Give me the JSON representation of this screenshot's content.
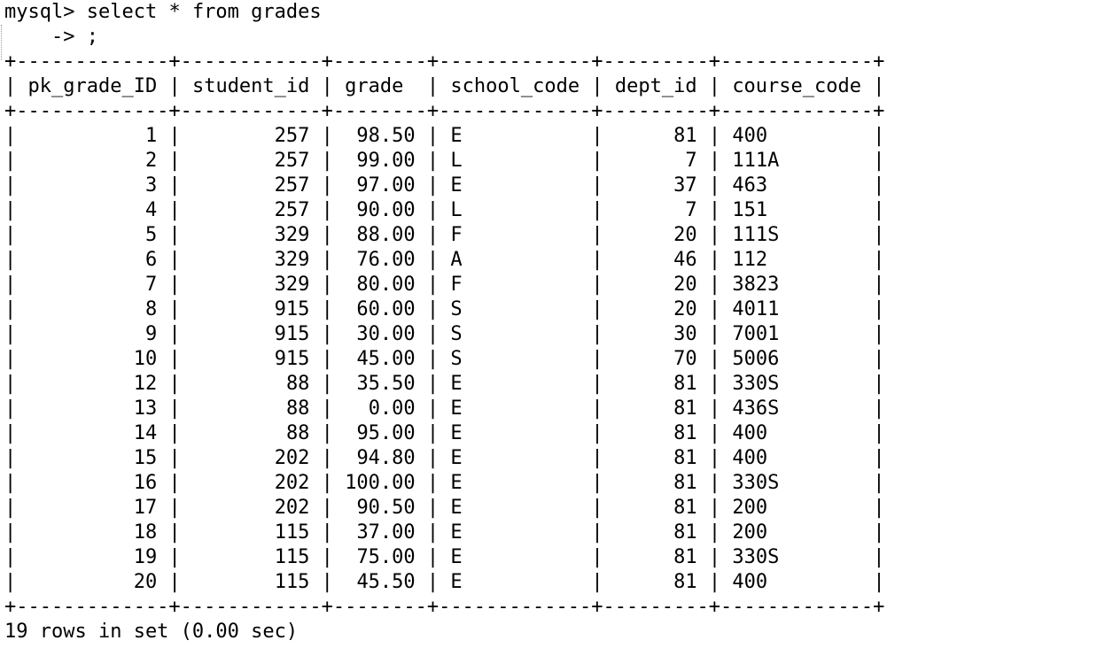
{
  "terminal": {
    "prompt": "mysql>",
    "command": "select * from grades",
    "continuation_prompt": "    ->",
    "continuation_text": ";",
    "columns": [
      "pk_grade_ID",
      "student_id",
      "grade",
      "school_code",
      "dept_id",
      "course_code"
    ],
    "rows": [
      [
        "1",
        "257",
        "98.50",
        "E",
        "81",
        "400"
      ],
      [
        "2",
        "257",
        "99.00",
        "L",
        "7",
        "111A"
      ],
      [
        "3",
        "257",
        "97.00",
        "E",
        "37",
        "463"
      ],
      [
        "4",
        "257",
        "90.00",
        "L",
        "7",
        "151"
      ],
      [
        "5",
        "329",
        "88.00",
        "F",
        "20",
        "111S"
      ],
      [
        "6",
        "329",
        "76.00",
        "A",
        "46",
        "112"
      ],
      [
        "7",
        "329",
        "80.00",
        "F",
        "20",
        "3823"
      ],
      [
        "8",
        "915",
        "60.00",
        "S",
        "20",
        "4011"
      ],
      [
        "9",
        "915",
        "30.00",
        "S",
        "30",
        "7001"
      ],
      [
        "10",
        "915",
        "45.00",
        "S",
        "70",
        "5006"
      ],
      [
        "12",
        "88",
        "35.50",
        "E",
        "81",
        "330S"
      ],
      [
        "13",
        "88",
        "0.00",
        "E",
        "81",
        "436S"
      ],
      [
        "14",
        "88",
        "95.00",
        "E",
        "81",
        "400"
      ],
      [
        "15",
        "202",
        "94.80",
        "E",
        "81",
        "400"
      ],
      [
        "16",
        "202",
        "100.00",
        "E",
        "81",
        "330S"
      ],
      [
        "17",
        "202",
        "90.50",
        "E",
        "81",
        "200"
      ],
      [
        "18",
        "115",
        "37.00",
        "E",
        "81",
        "200"
      ],
      [
        "19",
        "115",
        "75.00",
        "E",
        "81",
        "330S"
      ],
      [
        "20",
        "115",
        "45.50",
        "E",
        "81",
        "400"
      ]
    ],
    "footer": "19 rows in set (0.00 sec)"
  }
}
